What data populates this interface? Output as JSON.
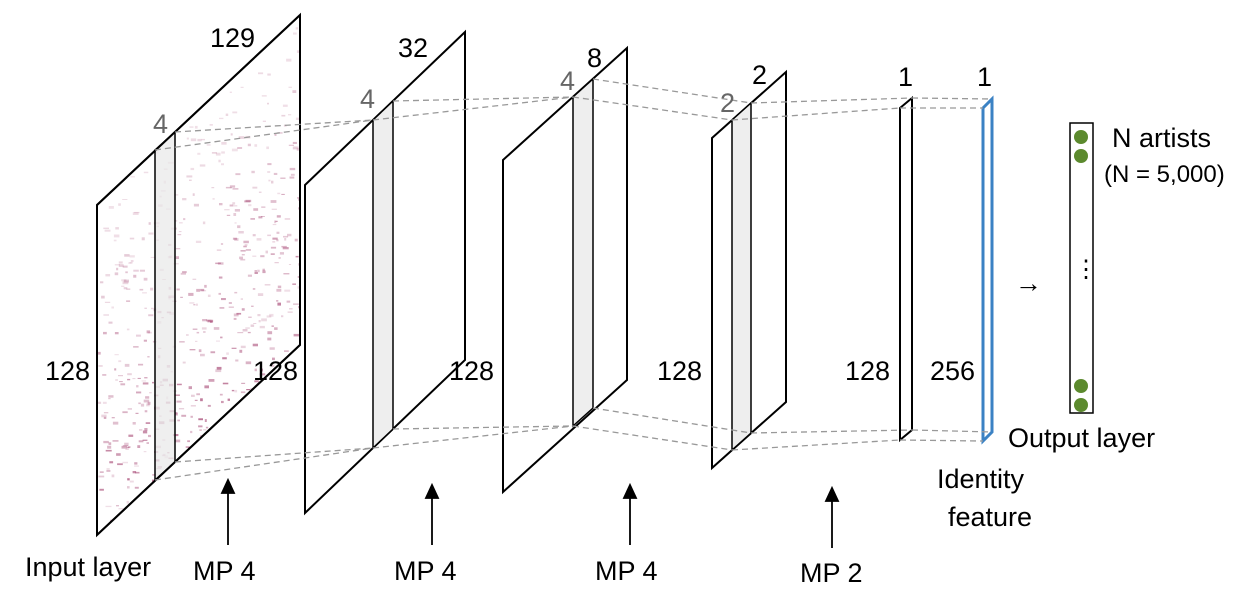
{
  "layers": {
    "input": {
      "top": "129",
      "height": "128",
      "kernel": "4",
      "caption": "Input layer"
    },
    "conv1": {
      "top": "32",
      "height": "128",
      "kernel": "4"
    },
    "conv2": {
      "top": "8",
      "height": "128",
      "kernel": "4"
    },
    "conv3": {
      "top": "2",
      "height": "128",
      "kernel": "2"
    },
    "conv4": {
      "top": "1",
      "height": "128"
    },
    "identity": {
      "top": "1",
      "height": "256",
      "caption_line1": "Identity",
      "caption_line2": "feature"
    }
  },
  "pooling": [
    "MP 4",
    "MP 4",
    "MP 4",
    "MP 2"
  ],
  "output": {
    "title": "N artists",
    "subtitle": "(N = 5,000)",
    "ellipsis": "⋮",
    "caption": "Output layer",
    "arrow": "→"
  },
  "colors": {
    "outline": "#000000",
    "kernel_fill": "#eeeeee",
    "dashed": "#999999",
    "identity_stroke": "#3b82c4",
    "dot": "#5c8a2e",
    "spectrogram": "#a03a6a"
  }
}
